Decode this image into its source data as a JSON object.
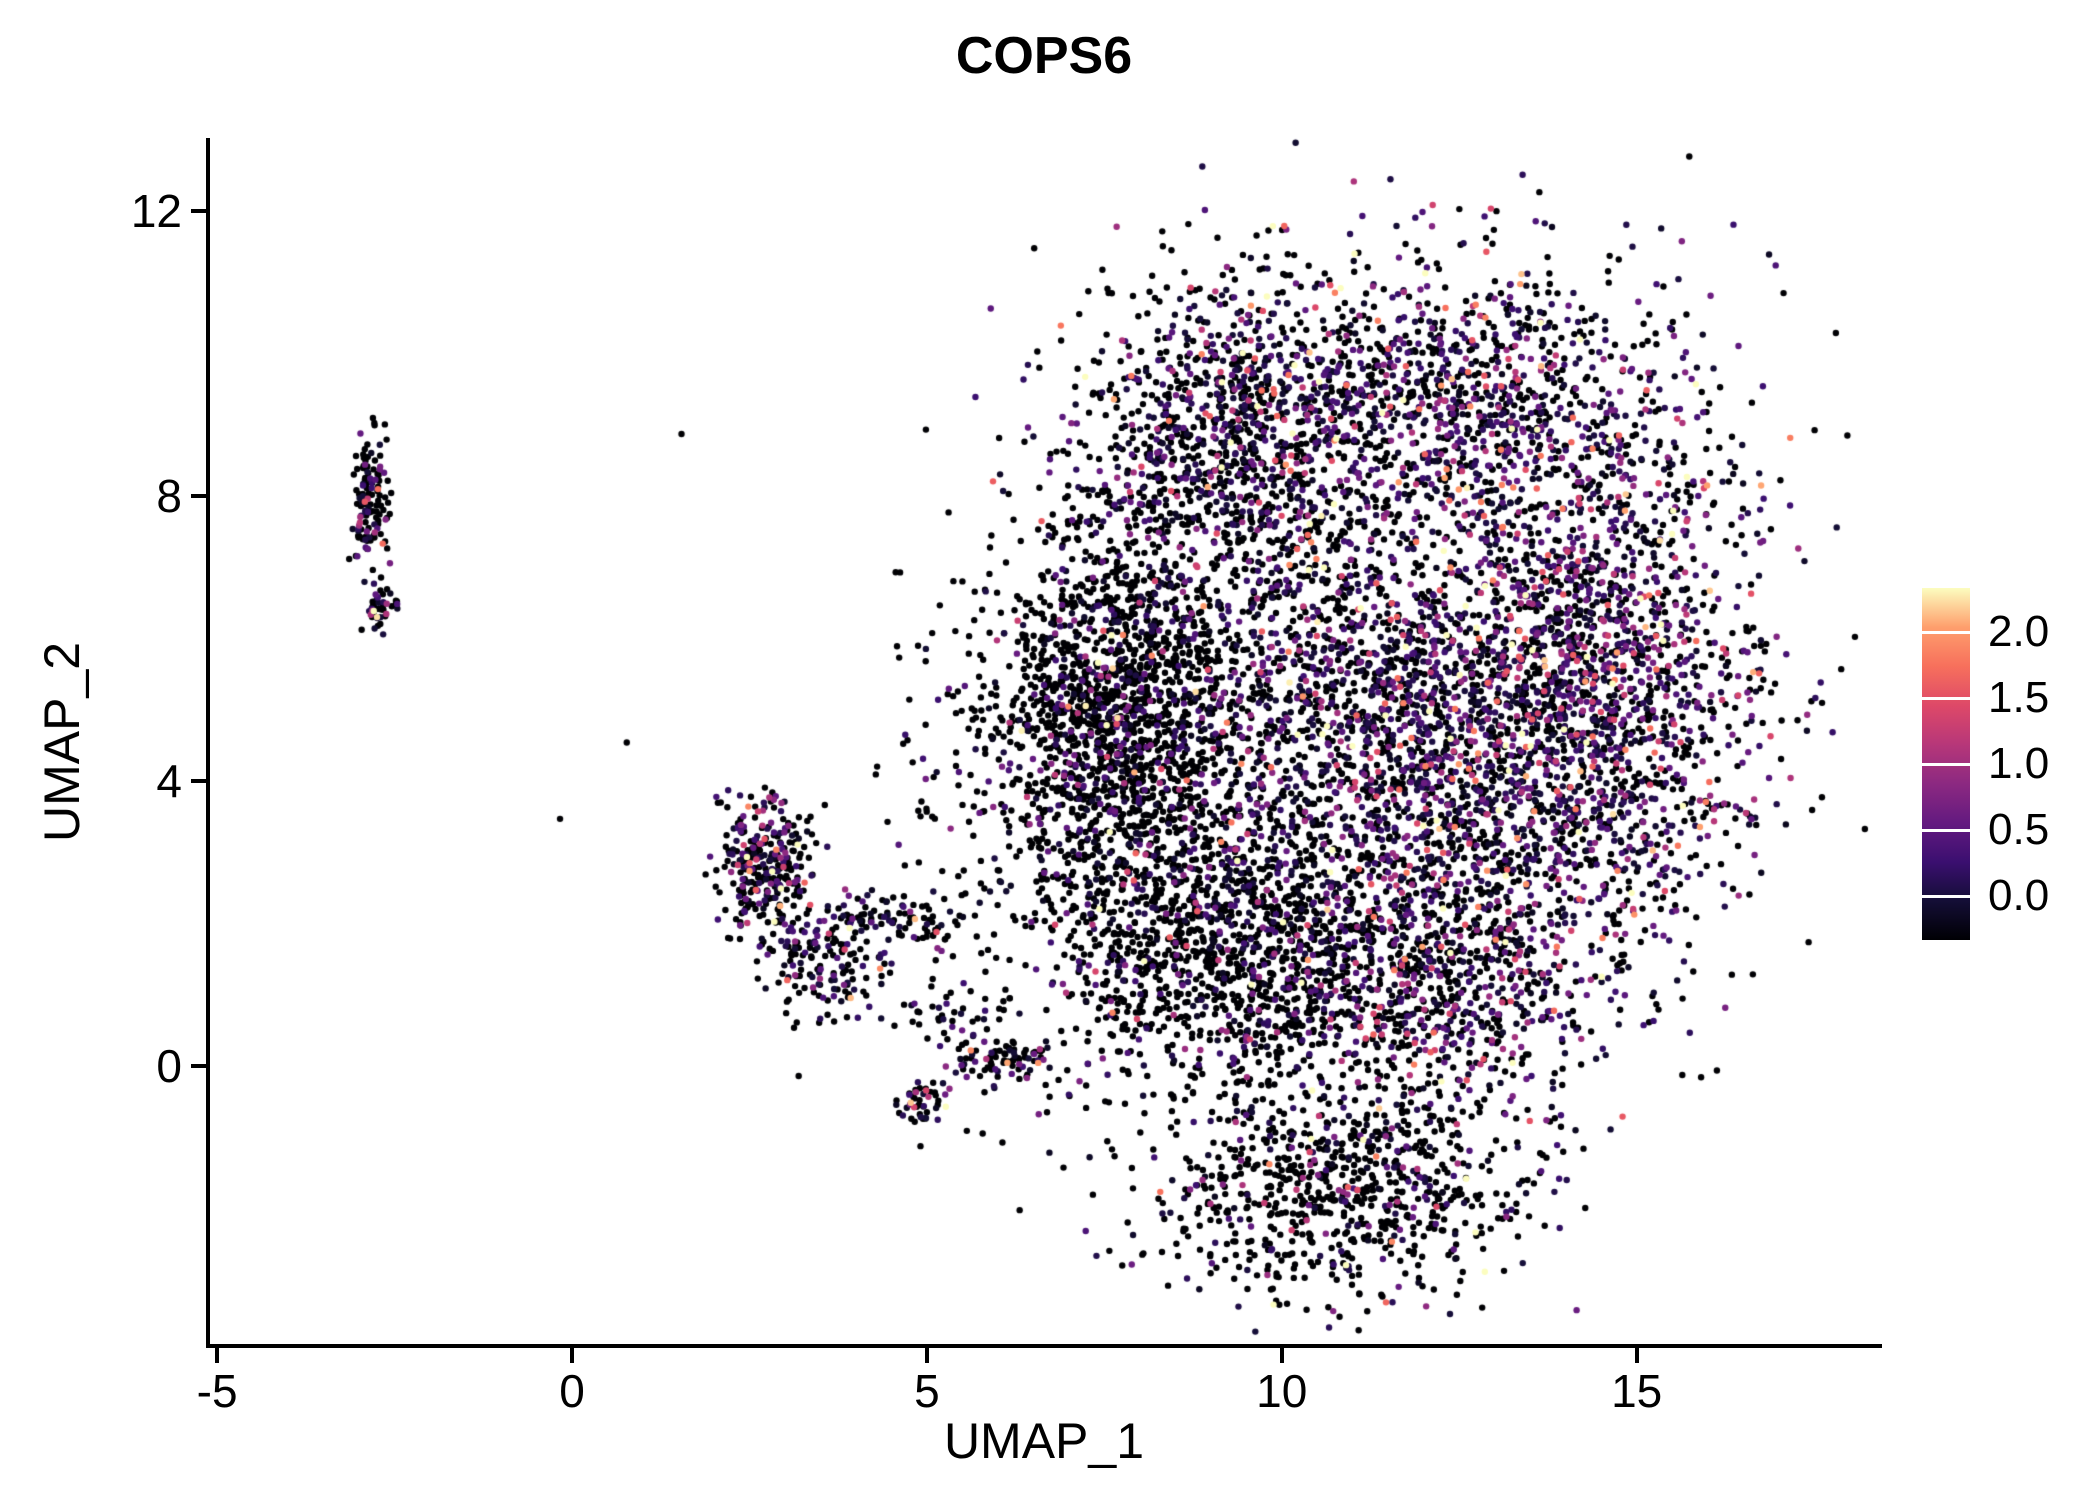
{
  "figure": {
    "title": "COPS6",
    "x_axis_label": "UMAP_1",
    "y_axis_label": "UMAP_2"
  },
  "chart_data": {
    "type": "scatter",
    "title": "COPS6",
    "xlabel": "UMAP_1",
    "ylabel": "UMAP_2",
    "xlim": [
      -5.1,
      18.4
    ],
    "ylim": [
      -3.9,
      13.0
    ],
    "xticks": [
      -5,
      0,
      5,
      10,
      15
    ],
    "yticks": [
      0,
      4,
      8,
      12
    ],
    "grid": false,
    "point_radius": 3.2,
    "seed": 42,
    "expression": {
      "vmin": 0.0,
      "vmax": 2.2,
      "value_floor": 0.12
    },
    "legend": {
      "type": "colorbar",
      "position": "right",
      "tick_labels": [
        "2.0",
        "1.5",
        "1.0",
        "0.5",
        "0.0"
      ],
      "tick_values": [
        2.0,
        1.5,
        1.0,
        0.5,
        0.0
      ]
    },
    "colormap": {
      "name": "magma",
      "stops": [
        "#000004",
        "#140e36",
        "#3b0f70",
        "#641a80",
        "#8c2981",
        "#b73779",
        "#de4968",
        "#f7705c",
        "#fe9f6d",
        "#fcfdbf"
      ]
    },
    "clusters": [
      {
        "name": "left-streak-top",
        "n": 130,
        "cx": -2.85,
        "cy": 8.0,
        "sx": 0.13,
        "sy": 0.5,
        "p0": 0.6,
        "scale": 0.5
      },
      {
        "name": "left-streak-bottom",
        "n": 45,
        "cx": -2.7,
        "cy": 6.45,
        "sx": 0.12,
        "sy": 0.18,
        "p0": 0.55,
        "scale": 0.5
      },
      {
        "name": "mid-left-main",
        "n": 300,
        "cx": 2.65,
        "cy": 2.8,
        "sx": 0.33,
        "sy": 0.5,
        "p0": 0.55,
        "scale": 0.55
      },
      {
        "name": "mid-left-lower",
        "n": 150,
        "cx": 3.6,
        "cy": 1.45,
        "sx": 0.45,
        "sy": 0.4,
        "p0": 0.6,
        "scale": 0.5
      },
      {
        "name": "mid-left-tail",
        "n": 90,
        "cx": 4.6,
        "cy": 2.05,
        "sx": 0.55,
        "sy": 0.22,
        "p0": 0.7,
        "scale": 0.5
      },
      {
        "name": "mid-stragglers",
        "n": 50,
        "cx": 5.2,
        "cy": 0.8,
        "sx": 0.5,
        "sy": 0.3,
        "p0": 0.7,
        "scale": 0.4
      },
      {
        "name": "small-clump-left",
        "n": 45,
        "cx": 4.95,
        "cy": -0.45,
        "sx": 0.18,
        "sy": 0.18,
        "p0": 0.5,
        "scale": 0.6
      },
      {
        "name": "small-clump-right",
        "n": 80,
        "cx": 6.1,
        "cy": 0.05,
        "sx": 0.35,
        "sy": 0.16,
        "p0": 0.55,
        "scale": 0.5
      },
      {
        "name": "main-left-wedge",
        "n": 1600,
        "cx": 7.6,
        "cy": 4.9,
        "sx": 0.9,
        "sy": 1.3,
        "p0": 0.82,
        "scale": 0.45
      },
      {
        "name": "main-upper-left",
        "n": 950,
        "cx": 9.2,
        "cy": 8.8,
        "sx": 1.1,
        "sy": 1.1,
        "p0": 0.6,
        "scale": 0.5
      },
      {
        "name": "main-top-right",
        "n": 1100,
        "cx": 12.3,
        "cy": 9.3,
        "sx": 1.6,
        "sy": 1.1,
        "p0": 0.45,
        "scale": 0.55
      },
      {
        "name": "main-right",
        "n": 1600,
        "cx": 14.5,
        "cy": 5.6,
        "sx": 1.2,
        "sy": 2.0,
        "p0": 0.4,
        "scale": 0.55
      },
      {
        "name": "main-center",
        "n": 1400,
        "cx": 10.8,
        "cy": 5.2,
        "sx": 1.6,
        "sy": 1.7,
        "p0": 0.55,
        "scale": 0.5
      },
      {
        "name": "main-center-right",
        "n": 900,
        "cx": 12.8,
        "cy": 4.2,
        "sx": 1.3,
        "sy": 1.3,
        "p0": 0.45,
        "scale": 0.55
      },
      {
        "name": "main-lower-band",
        "n": 1300,
        "cx": 9.3,
        "cy": 1.6,
        "sx": 1.4,
        "sy": 1.1,
        "p0": 0.78,
        "scale": 0.45
      },
      {
        "name": "main-lower-right",
        "n": 700,
        "cx": 12.2,
        "cy": 1.2,
        "sx": 1.2,
        "sy": 0.9,
        "p0": 0.5,
        "scale": 0.5
      },
      {
        "name": "bottom-lobe",
        "n": 800,
        "cx": 10.9,
        "cy": -1.7,
        "sx": 1.4,
        "sy": 0.75,
        "p0": 0.75,
        "scale": 0.5
      },
      {
        "name": "sparse-halo",
        "n": 260,
        "cx": 10.5,
        "cy": 5.0,
        "sx": 3.2,
        "sy": 3.2,
        "p0": 0.7,
        "scale": 0.5
      },
      {
        "name": "between-stragglers",
        "n": 60,
        "cx": 6.0,
        "cy": 3.8,
        "sx": 0.9,
        "sy": 0.9,
        "p0": 0.75,
        "scale": 0.4
      }
    ]
  }
}
